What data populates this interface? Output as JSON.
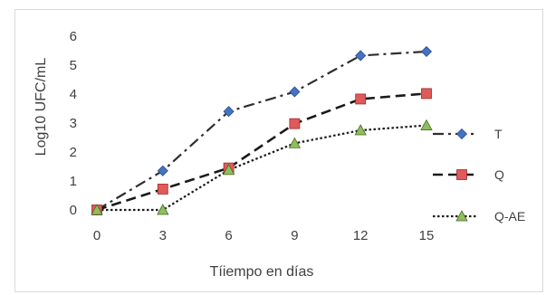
{
  "chart_data": {
    "type": "line",
    "title": "",
    "xlabel": "Tíiempo en días",
    "ylabel": "Log10 UFC/mL",
    "x": [
      0,
      3,
      6,
      9,
      12,
      15
    ],
    "x_ticks": [
      "0",
      "3",
      "6",
      "9",
      "12",
      "15"
    ],
    "y_ticks": [
      "0",
      "1",
      "2",
      "3",
      "4",
      "5",
      "6"
    ],
    "xlim": [
      0,
      15
    ],
    "ylim": [
      0,
      6
    ],
    "grid": false,
    "legend_position": "right",
    "series": [
      {
        "name": "T",
        "values": [
          0,
          1.35,
          3.4,
          4.08,
          5.33,
          5.47
        ],
        "color": "#2f2f2f",
        "marker": "diamond",
        "marker_color": "#4472c4",
        "line_style": "dash-dot"
      },
      {
        "name": "Q",
        "values": [
          0,
          0.72,
          1.45,
          2.98,
          3.83,
          4.02
        ],
        "color": "#1a1a1a",
        "marker": "square",
        "marker_color": "#e05a5a",
        "line_style": "dash"
      },
      {
        "name": "Q-AE",
        "values": [
          0,
          0,
          1.38,
          2.3,
          2.75,
          2.92
        ],
        "color": "#1a1a1a",
        "marker": "triangle",
        "marker_color": "#8fbf5a",
        "line_style": "dot"
      }
    ]
  }
}
